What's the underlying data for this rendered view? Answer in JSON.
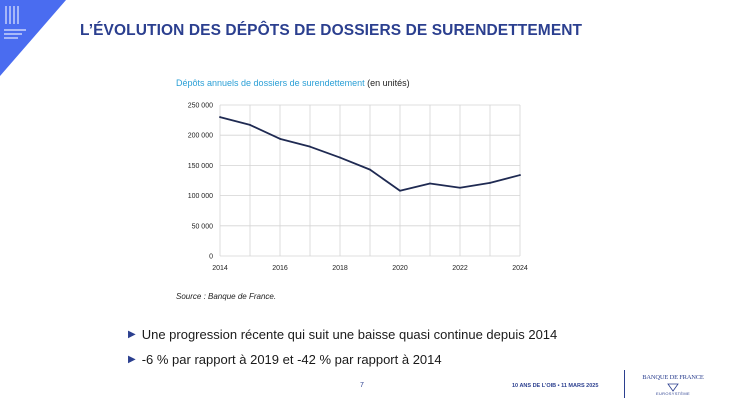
{
  "title": "L’ÉVOLUTION DES DÉPÔTS DE DOSSIERS DE SURENDETTEMENT",
  "chart_caption": {
    "main": "Dépôts annuels de dossiers de surendettement",
    "unit": "(en unités)"
  },
  "chart_data": {
    "type": "line",
    "title": "Dépôts annuels de dossiers de surendettement (en unités)",
    "x": [
      2014,
      2015,
      2016,
      2017,
      2018,
      2019,
      2020,
      2021,
      2022,
      2023,
      2024
    ],
    "series": [
      {
        "name": "Dépôts annuels",
        "values": [
          230000,
          217000,
          194000,
          181000,
          163000,
          143000,
          108000,
          120000,
          113000,
          121000,
          134000
        ]
      }
    ],
    "x_ticks": [
      "2014",
      "2016",
      "2018",
      "2020",
      "2022",
      "2024"
    ],
    "y_ticks": [
      "0",
      "50 000",
      "100 000",
      "150 000",
      "200 000",
      "250 000"
    ],
    "ylim": [
      0,
      250000
    ],
    "xlim": [
      2014,
      2024
    ],
    "grid": true,
    "xlabel": "",
    "ylabel": "",
    "colors": {
      "line": "#1f2a52",
      "grid": "#d4d4d4"
    }
  },
  "source": "Source : Banque de France.",
  "bullets": [
    "Une progression récente qui suit une baisse quasi continue depuis 2014",
    "-6 % par rapport à 2019 et -42 % par rapport à 2014"
  ],
  "bullet_icon": "triangle-right-icon",
  "footer": {
    "page_number": "7",
    "event": "10 ANS DE L’OIB • 11 MARS 2025",
    "bank_name": "BANQUE DE FRANCE",
    "bank_tagline": "EUROSYSTÈME"
  },
  "colors": {
    "brand_blue": "#2b3f8f",
    "caption_blue": "#2a9fd6"
  }
}
